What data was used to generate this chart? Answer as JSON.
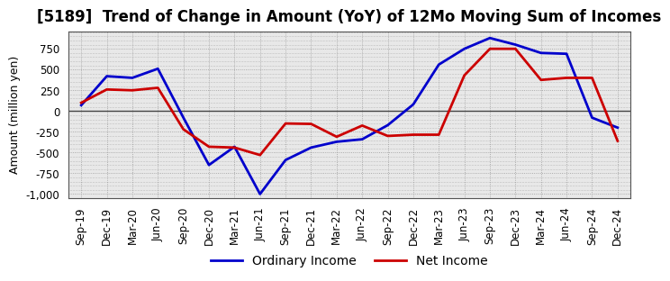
{
  "title": "[5189]  Trend of Change in Amount (YoY) of 12Mo Moving Sum of Incomes",
  "ylabel": "Amount (million yen)",
  "x_labels": [
    "Sep-19",
    "Dec-19",
    "Mar-20",
    "Jun-20",
    "Sep-20",
    "Dec-20",
    "Mar-21",
    "Jun-21",
    "Sep-21",
    "Dec-21",
    "Mar-22",
    "Jun-22",
    "Sep-22",
    "Dec-22",
    "Mar-23",
    "Jun-23",
    "Sep-23",
    "Dec-23",
    "Mar-24",
    "Jun-24",
    "Sep-24",
    "Dec-24"
  ],
  "ordinary_income": [
    70,
    420,
    400,
    510,
    -80,
    -650,
    -430,
    -1000,
    -590,
    -440,
    -370,
    -340,
    -170,
    80,
    560,
    750,
    880,
    800,
    700,
    690,
    -80,
    -200
  ],
  "net_income": [
    100,
    260,
    250,
    280,
    -220,
    -430,
    -440,
    -530,
    -150,
    -155,
    -310,
    -175,
    -300,
    -285,
    -285,
    430,
    750,
    750,
    375,
    400,
    400,
    -360
  ],
  "ordinary_income_color": "#0000cc",
  "net_income_color": "#cc0000",
  "ylim": [
    -1050,
    960
  ],
  "yticks": [
    -1000,
    -750,
    -500,
    -250,
    0,
    250,
    500,
    750
  ],
  "legend_labels": [
    "Ordinary Income",
    "Net Income"
  ],
  "plot_bg_color": "#e8e8e8",
  "fig_bg_color": "#ffffff",
  "grid_color": "#999999",
  "zero_line_color": "#444444",
  "line_width": 2.0,
  "title_fontsize": 12,
  "axis_fontsize": 9,
  "tick_fontsize": 8.5,
  "legend_fontsize": 10
}
